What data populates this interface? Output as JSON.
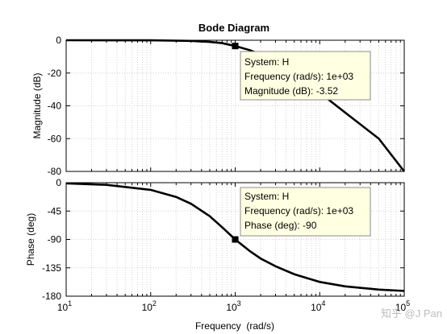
{
  "chart_data": [
    {
      "type": "line",
      "panel": "magnitude",
      "title": "Bode Diagram",
      "ylabel": "Magnitude (dB)",
      "xscale": "log",
      "xlim": [
        10,
        100000
      ],
      "ylim": [
        -80,
        0
      ],
      "yticks": [
        "0",
        "-20",
        "-40",
        "-60",
        "-80"
      ],
      "grid": true,
      "series": [
        {
          "name": "H",
          "x": [
            10,
            100,
            300,
            500,
            700,
            1000,
            1500,
            2000,
            3000,
            5000,
            10000,
            20000,
            50000,
            100000
          ],
          "y": [
            0,
            -0.04,
            -0.4,
            -1.0,
            -1.75,
            -3.52,
            -6.1,
            -8.6,
            -13.2,
            -19.9,
            -32.0,
            -44.1,
            -60.0,
            -80.0
          ]
        }
      ],
      "marker": {
        "x": 1000,
        "y": -3.52
      },
      "datatip": {
        "lines": [
          "System: H",
          "Frequency (rad/s): 1e+03",
          "Magnitude (dB): -3.52"
        ]
      }
    },
    {
      "type": "line",
      "panel": "phase",
      "xlabel": "Frequency  (rad/s)",
      "ylabel": "Phase (deg)",
      "xscale": "log",
      "xlim": [
        10,
        100000
      ],
      "ylim": [
        -180,
        0
      ],
      "yticks": [
        "0",
        "-45",
        "-90",
        "-135",
        "-180"
      ],
      "xticks": [
        {
          "base": "10",
          "exp": "1"
        },
        {
          "base": "10",
          "exp": "2"
        },
        {
          "base": "10",
          "exp": "3"
        },
        {
          "base": "10",
          "exp": "4"
        },
        {
          "base": "10",
          "exp": "5"
        }
      ],
      "grid": true,
      "series": [
        {
          "name": "H",
          "x": [
            10,
            30,
            100,
            200,
            300,
            500,
            700,
            1000,
            1500,
            2000,
            3000,
            5000,
            10000,
            20000,
            50000,
            100000
          ],
          "y": [
            -1.1,
            -3.4,
            -11.4,
            -22.6,
            -33.4,
            -53.1,
            -70.6,
            -90,
            -108.8,
            -120.3,
            -132.5,
            -145.2,
            -157.4,
            -164.4,
            -169.6,
            -171.7
          ]
        }
      ],
      "marker": {
        "x": 1000,
        "y": -90
      },
      "datatip": {
        "lines": [
          "System: H",
          "Frequency (rad/s): 1e+03",
          "Phase (deg): -90"
        ]
      }
    }
  ],
  "watermark": "知乎 @J Pan"
}
